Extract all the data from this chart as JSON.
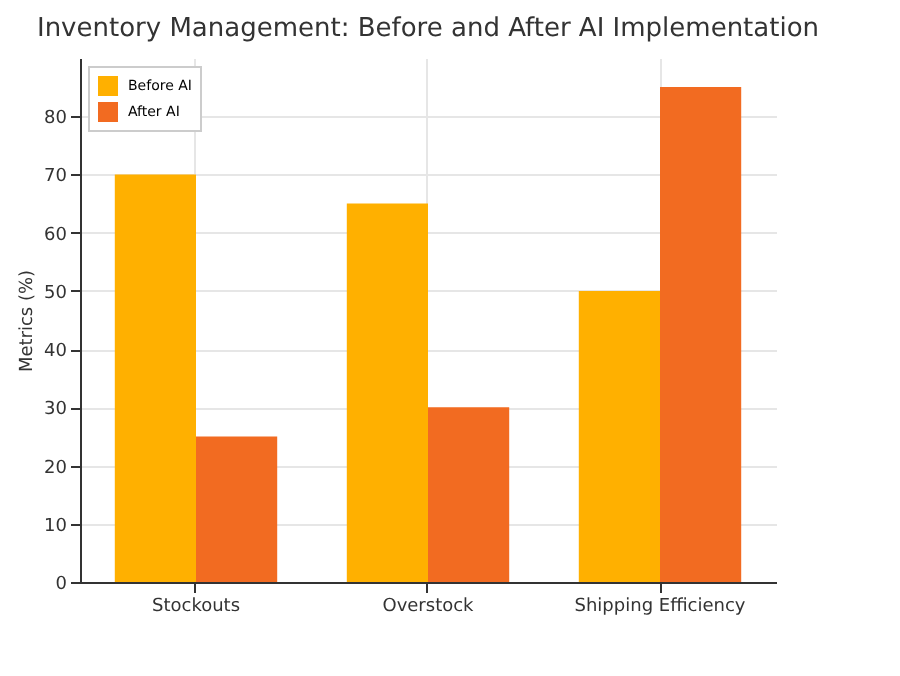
{
  "chart_data": {
    "type": "bar",
    "title": "Inventory Management: Before and After AI Implementation",
    "ylabel": "Metrics (%)",
    "categories": [
      "Stockouts",
      "Overstock",
      "Shipping Efficiency"
    ],
    "series": [
      {
        "name": "Before AI",
        "color": "#ffb000",
        "values": [
          70,
          65,
          50
        ]
      },
      {
        "name": "After AI",
        "color": "#f26b21",
        "values": [
          25,
          30,
          85
        ]
      }
    ],
    "ylim": [
      0,
      90
    ],
    "yticks": [
      0,
      10,
      20,
      30,
      40,
      50,
      60,
      70,
      80
    ],
    "grid": true,
    "legend": "top left"
  }
}
